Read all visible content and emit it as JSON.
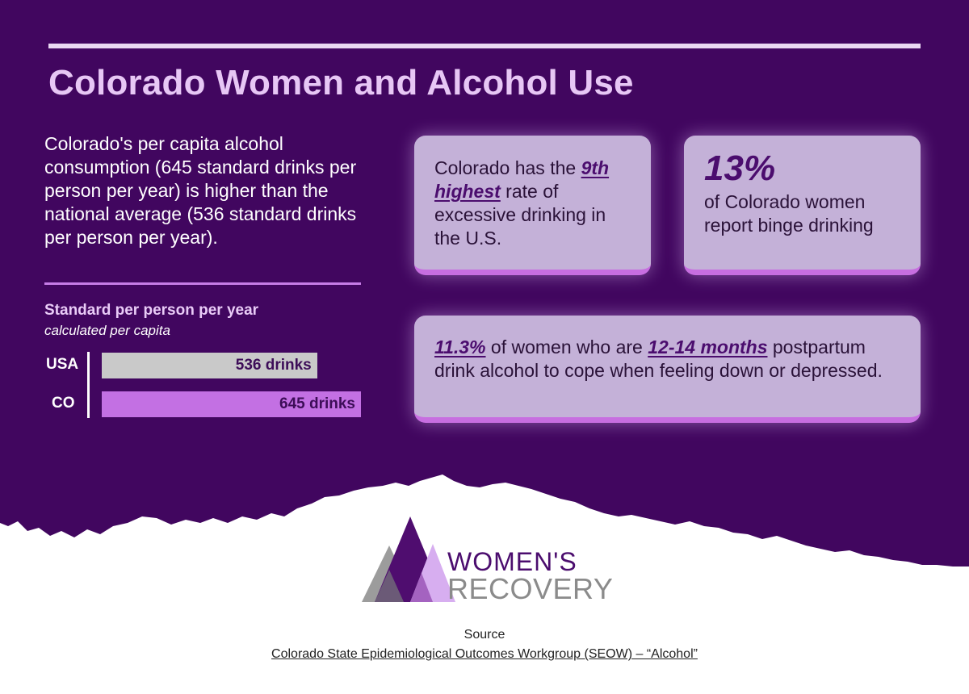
{
  "title": "Colorado Women and Alcohol Use",
  "intro": "Colorado's per capita alcohol consumption (645 standard drinks per person per year) is higher than the national average (536 standard drinks per person per year).",
  "chart_data": {
    "type": "bar",
    "orientation": "horizontal",
    "title": "Standard per person per year",
    "subtitle": "calculated per capita",
    "categories": [
      "USA",
      "CO"
    ],
    "values": [
      536,
      645
    ],
    "value_labels": [
      "536 drinks",
      "645 drinks"
    ],
    "colors": [
      "#c9c9c9",
      "#c370e3"
    ],
    "xlim": [
      0,
      645
    ],
    "grid": false
  },
  "cards": {
    "rank": {
      "pre": "Colorado has the ",
      "highlight": "9th highest",
      "post": " rate of excessive drinking in the U.S."
    },
    "binge": {
      "stat": "13%",
      "text": "of Colorado women report binge drinking"
    },
    "postpartum": {
      "stat": "11.3%",
      "mid": " of women who are ",
      "highlight": "12-14 months",
      "post": " postpartum drink alcohol to cope when feeling down or depressed."
    }
  },
  "logo": {
    "line1": "WOMEN'S",
    "line2": "RECOVERY"
  },
  "source": {
    "label": "Source",
    "link_text": "Colorado State Epidemiological Outcomes Workgroup (SEOW) – “Alcohol”"
  },
  "colors": {
    "background": "#41065f",
    "title": "#e7c7f5",
    "card": "#c4b1d8",
    "accent": "#c76ee0",
    "emphasis": "#4b0d6e"
  }
}
